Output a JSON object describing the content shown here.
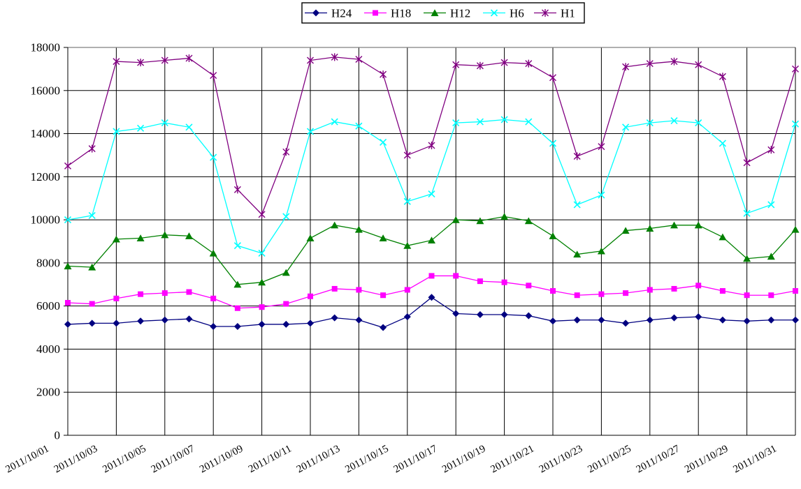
{
  "chart_data": {
    "type": "line",
    "title": "",
    "xlabel": "",
    "ylabel": "",
    "ylim": [
      0,
      18000
    ],
    "y_tick_step": 2000,
    "grid": true,
    "legend_position": "top-center",
    "background": "#FFFFFF",
    "gridline_color": "#000000",
    "plot_top_border_color": "#808080",
    "y_tick_labels": [
      "0",
      "2000",
      "4000",
      "6000",
      "8000",
      "10000",
      "12000",
      "14000",
      "16000",
      "18000"
    ],
    "x": [
      "2011/10/01",
      "2011/10/02",
      "2011/10/03",
      "2011/10/04",
      "2011/10/05",
      "2011/10/06",
      "2011/10/07",
      "2011/10/08",
      "2011/10/09",
      "2011/10/10",
      "2011/10/11",
      "2011/10/12",
      "2011/10/13",
      "2011/10/14",
      "2011/10/15",
      "2011/10/16",
      "2011/10/17",
      "2011/10/18",
      "2011/10/19",
      "2011/10/20",
      "2011/10/21",
      "2011/10/22",
      "2011/10/23",
      "2011/10/24",
      "2011/10/25",
      "2011/10/26",
      "2011/10/27",
      "2011/10/28",
      "2011/10/29",
      "2011/10/30",
      "2011/10/31"
    ],
    "x_tick_labels": [
      "2011/10/01",
      "2011/10/03",
      "2011/10/05",
      "2011/10/07",
      "2011/10/09",
      "2011/10/11",
      "2011/10/13",
      "2011/10/15",
      "2011/10/17",
      "2011/10/19",
      "2011/10/21",
      "2011/10/23",
      "2011/10/25",
      "2011/10/27",
      "2011/10/29",
      "2011/10/31"
    ],
    "series": [
      {
        "name": "H24",
        "marker": "diamond",
        "color": "#000080",
        "values": [
          5150,
          5200,
          5200,
          5300,
          5350,
          5400,
          5050,
          5050,
          5150,
          5150,
          5200,
          5450,
          5350,
          5000,
          5500,
          6400,
          5650,
          5600,
          5600,
          5550,
          5300,
          5350,
          5350,
          5200,
          5350,
          5450,
          5500,
          5350,
          5300,
          5350,
          5350
        ]
      },
      {
        "name": "H18",
        "marker": "square",
        "color": "#FF00FF",
        "values": [
          6150,
          6100,
          6350,
          6550,
          6600,
          6650,
          6350,
          5900,
          5950,
          6100,
          6450,
          6800,
          6750,
          6500,
          6750,
          7400,
          7400,
          7150,
          7100,
          6950,
          6700,
          6500,
          6550,
          6600,
          6750,
          6800,
          6950,
          6700,
          6500,
          6500,
          6700
        ]
      },
      {
        "name": "H12",
        "marker": "triangle",
        "color": "#008000",
        "values": [
          7850,
          7800,
          9100,
          9150,
          9300,
          9250,
          8450,
          7000,
          7100,
          7550,
          9150,
          9750,
          9550,
          9150,
          8800,
          9050,
          10000,
          9950,
          10150,
          9950,
          9250,
          8400,
          8550,
          9500,
          9600,
          9750,
          9750,
          9200,
          8200,
          8300,
          9550
        ]
      },
      {
        "name": "H6",
        "marker": "x",
        "color": "#00FFFF",
        "values": [
          10000,
          10200,
          14100,
          14250,
          14500,
          14300,
          12900,
          8800,
          8450,
          10150,
          14100,
          14550,
          14350,
          13600,
          10850,
          11200,
          14500,
          14550,
          14650,
          14550,
          13550,
          10700,
          11150,
          14300,
          14500,
          14600,
          14500,
          13550,
          10300,
          10700,
          14450
        ]
      },
      {
        "name": "H1",
        "marker": "asterisk",
        "color": "#800080",
        "values": [
          12500,
          13300,
          17350,
          17300,
          17400,
          17500,
          16700,
          11400,
          10250,
          13150,
          17400,
          17550,
          17450,
          16750,
          13000,
          13450,
          17200,
          17150,
          17300,
          17250,
          16600,
          12950,
          13400,
          17100,
          17250,
          17350,
          17200,
          16650,
          12650,
          13250,
          17000
        ]
      }
    ],
    "legend_items": [
      "H24",
      "H18",
      "H12",
      "H6",
      "H1"
    ]
  }
}
